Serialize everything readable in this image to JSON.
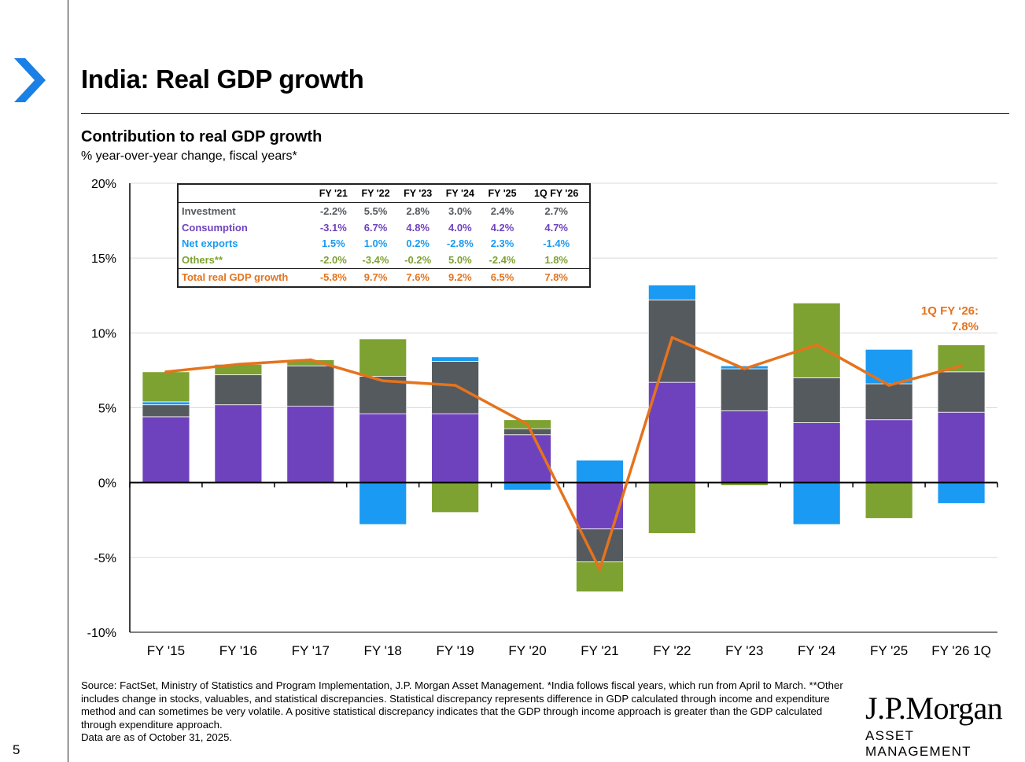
{
  "page": {
    "title": "India: Real GDP growth",
    "subtitle": "Contribution to real GDP growth",
    "subsubtitle": "% year-over-year change, fiscal years*",
    "page_number": "5",
    "footnote_lines": [
      "Source: FactSet, Ministry of Statistics and Program Implementation, J.P. Morgan Asset Management. *India follows fiscal years, which run from April to March. **Other includes change in stocks, valuables, and statistical discrepancies. Statistical discrepancy represents difference in GDP calculated through income and expenditure method and can sometimes be very volatile. A positive statistical discrepancy indicates that the GDP through income approach is greater than the GDP calculated through expenditure approach.",
      "Data are as of October 31, 2025."
    ],
    "logo_main": "J.P.Morgan",
    "logo_sub": "ASSET MANAGEMENT"
  },
  "colors": {
    "consumption": "#6f42bd",
    "investment": "#555a5f",
    "net_exports": "#1a9af2",
    "others": "#7da232",
    "total": "#e5731d",
    "chevron": "#1a80e6"
  },
  "table": {
    "headers": [
      "FY '21",
      "FY '22",
      "FY '23",
      "FY '24",
      "FY '25",
      "1Q FY '26"
    ],
    "rows": [
      {
        "label": "Investment",
        "color": "#555a5f",
        "values": [
          "-2.2%",
          "5.5%",
          "2.8%",
          "3.0%",
          "2.4%",
          "2.7%"
        ]
      },
      {
        "label": "Consumption",
        "color": "#6f42bd",
        "values": [
          "-3.1%",
          "6.7%",
          "4.8%",
          "4.0%",
          "4.2%",
          "4.7%"
        ]
      },
      {
        "label": "Net exports",
        "color": "#1a9af2",
        "values": [
          "1.5%",
          "1.0%",
          "0.2%",
          "-2.8%",
          "2.3%",
          "-1.4%"
        ]
      },
      {
        "label": "Others**",
        "color": "#7da232",
        "values": [
          "-2.0%",
          "-3.4%",
          "-0.2%",
          "5.0%",
          "-2.4%",
          "1.8%"
        ]
      },
      {
        "label": "Total real GDP growth",
        "color": "#e5731d",
        "values": [
          "-5.8%",
          "9.7%",
          "7.6%",
          "9.2%",
          "6.5%",
          "7.8%"
        ]
      }
    ]
  },
  "annotation": {
    "line1": "1Q FY ‘26:",
    "line2": "7.8%"
  },
  "chart_data": {
    "type": "bar",
    "stacked": true,
    "categories": [
      "FY '15",
      "FY '16",
      "FY '17",
      "FY '18",
      "FY '19",
      "FY '20",
      "FY '21",
      "FY '22",
      "FY '23",
      "FY '24",
      "FY '25",
      "FY '26 1Q"
    ],
    "series": [
      {
        "name": "Consumption",
        "values": [
          4.4,
          5.2,
          5.1,
          4.6,
          4.6,
          3.2,
          -3.1,
          6.7,
          4.8,
          4.0,
          4.2,
          4.7
        ]
      },
      {
        "name": "Investment",
        "values": [
          0.8,
          2.0,
          2.7,
          2.5,
          3.5,
          0.4,
          -2.2,
          5.5,
          2.8,
          3.0,
          2.4,
          2.7
        ]
      },
      {
        "name": "Net exports",
        "values": [
          0.2,
          0.0,
          0.0,
          -2.8,
          0.3,
          -0.5,
          1.5,
          1.0,
          0.2,
          -2.8,
          2.3,
          -1.4
        ]
      },
      {
        "name": "Others**",
        "values": [
          2.0,
          0.7,
          0.4,
          2.5,
          -2.0,
          0.6,
          -2.0,
          -3.4,
          -0.2,
          5.0,
          -2.4,
          1.8
        ]
      },
      {
        "name": "Total real GDP growth",
        "type": "line",
        "values": [
          7.4,
          7.9,
          8.2,
          6.8,
          6.5,
          3.9,
          -5.8,
          9.7,
          7.6,
          9.2,
          6.5,
          7.8
        ]
      }
    ],
    "ylim": [
      -10,
      20
    ],
    "yticks": [
      -10,
      -5,
      0,
      5,
      10,
      15,
      20
    ],
    "ytick_labels": [
      "-10%",
      "-5%",
      "0%",
      "5%",
      "10%",
      "15%",
      "20%"
    ],
    "grid": true,
    "title": "Contribution to real GDP growth",
    "ylabel": "% year-over-year change, fiscal years*"
  }
}
